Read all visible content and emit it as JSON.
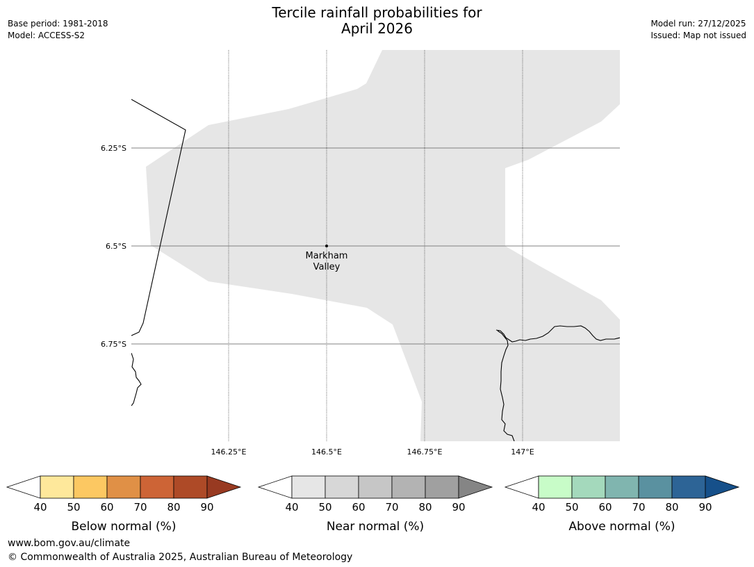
{
  "title": {
    "line1": "Tercile rainfall probabilities for",
    "line2": "April 2026"
  },
  "meta": {
    "base_period": "Base period: 1981-2018",
    "model": "Model: ACCESS-S2",
    "model_run": "Model run: 27/12/2025",
    "issued": "Issued: Map not issued"
  },
  "map": {
    "lat_labels": [
      "6.25°S",
      "6.5°S",
      "6.75°S"
    ],
    "lon_labels": [
      "146.25°E",
      "146.5°E",
      "146.75°E",
      "147°E"
    ],
    "place": {
      "line1": "Markham",
      "line2": "Valley"
    },
    "shaded_category": "Near normal 40-50%",
    "colors": {
      "ocean": "#ffffff",
      "shading": "#e6e6e6",
      "coast": "#000000",
      "grid": "#808080"
    }
  },
  "legends": [
    {
      "label": "Below normal (%)",
      "ticks": [
        "40",
        "50",
        "60",
        "70",
        "80",
        "90"
      ],
      "colors": [
        "#fee89b",
        "#fcc862",
        "#e09046",
        "#cd6436",
        "#ae4a27",
        "#983a21"
      ]
    },
    {
      "label": "Near normal (%)",
      "ticks": [
        "40",
        "50",
        "60",
        "70",
        "80",
        "90"
      ],
      "colors": [
        "#e6e6e6",
        "#d7d7d7",
        "#c6c6c6",
        "#b3b3b3",
        "#a0a0a0",
        "#858585"
      ]
    },
    {
      "label": "Above normal (%)",
      "ticks": [
        "40",
        "50",
        "60",
        "70",
        "80",
        "90"
      ],
      "colors": [
        "#c8fcc8",
        "#a4d9bc",
        "#80b5af",
        "#5a91a0",
        "#2d6496",
        "#16508a"
      ]
    }
  ],
  "footer": {
    "url": "www.bom.gov.au/climate",
    "copyright": "© Commonwealth of Australia 2025, Australian Bureau of Meteorology"
  }
}
